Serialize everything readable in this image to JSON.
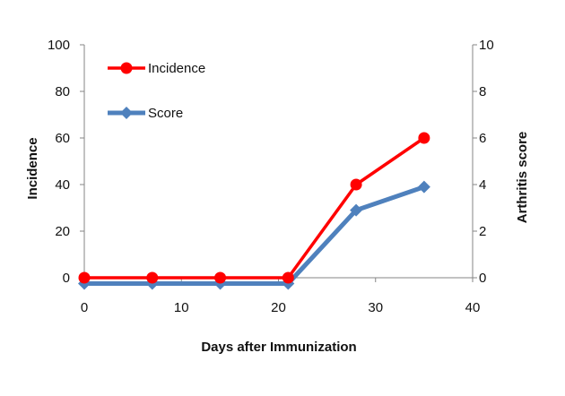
{
  "chart_data": {
    "type": "line",
    "xlabel": "Days after Immunization",
    "ylabel": "Incidence",
    "y2label": "Arthritis score",
    "xlim": [
      0,
      40
    ],
    "ylim": [
      0,
      100
    ],
    "y2lim": [
      0,
      10
    ],
    "xticks": [
      "0",
      "10",
      "20",
      "30",
      "40"
    ],
    "yticks": [
      "0",
      "20",
      "40",
      "60",
      "80",
      "100"
    ],
    "y2ticks": [
      "0",
      "2",
      "4",
      "6",
      "8",
      "10"
    ],
    "grid": false,
    "legend_position": "top-left",
    "series": [
      {
        "name": "Incidence",
        "axis": "left",
        "color": "#ff0000",
        "marker": "circle",
        "x": [
          0,
          7,
          14,
          21,
          28,
          35
        ],
        "y": [
          0,
          0,
          0,
          0,
          40,
          60
        ]
      },
      {
        "name": "Score",
        "axis": "right",
        "color": "#4f81bd",
        "marker": "diamond",
        "x": [
          0,
          7,
          14,
          21,
          28,
          35
        ],
        "y": [
          -0.25,
          -0.25,
          -0.25,
          -0.25,
          2.9,
          3.9
        ]
      }
    ]
  }
}
